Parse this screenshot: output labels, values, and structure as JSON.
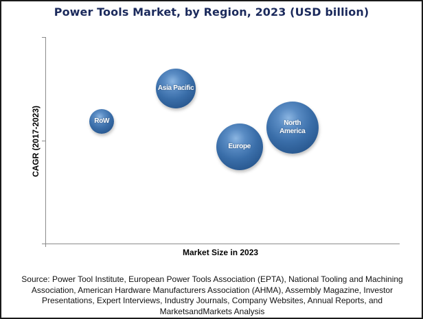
{
  "chart_data": {
    "type": "scatter",
    "subtype": "bubble",
    "title": "Power Tools Market, by Region, 2023 (USD billion)",
    "xlabel": "Market Size in 2023",
    "ylabel": "CAGR (2017-2023)",
    "axis_ticks_labeled": false,
    "grid": false,
    "legend": null,
    "note": "Axes have no numeric tick labels; x/y below are relative positions (0-1) within the plot area, size is bubble radius in px.",
    "series": [
      {
        "name": "RoW",
        "label": "RoW",
        "x": 0.16,
        "y": 0.59,
        "size": 18
      },
      {
        "name": "Asia Pacific",
        "label": "Asia Pacific",
        "x": 0.37,
        "y": 0.75,
        "size": 29
      },
      {
        "name": "Europe",
        "label": "Europe",
        "x": 0.55,
        "y": 0.47,
        "size": 34
      },
      {
        "name": "North America",
        "label": "North\nAmerica",
        "x": 0.7,
        "y": 0.56,
        "size": 38
      }
    ],
    "colors": {
      "bubble": "#3a6ea9",
      "bubble_highlight": "#8cb6e2",
      "bubble_edge": "#1b3f6b",
      "title": "#1b2a5c",
      "axis": "#8a8a8a"
    }
  },
  "source": "Source: Power Tool Institute, European Power Tools Association (EPTA), National Tooling and Machining Association, American Hardware Manufacturers Association (AHMA), Assembly Magazine, Investor Presentations, Expert Interviews, Industry Journals, Company Websites, Annual Reports, and MarketsandMarkets Analysis"
}
